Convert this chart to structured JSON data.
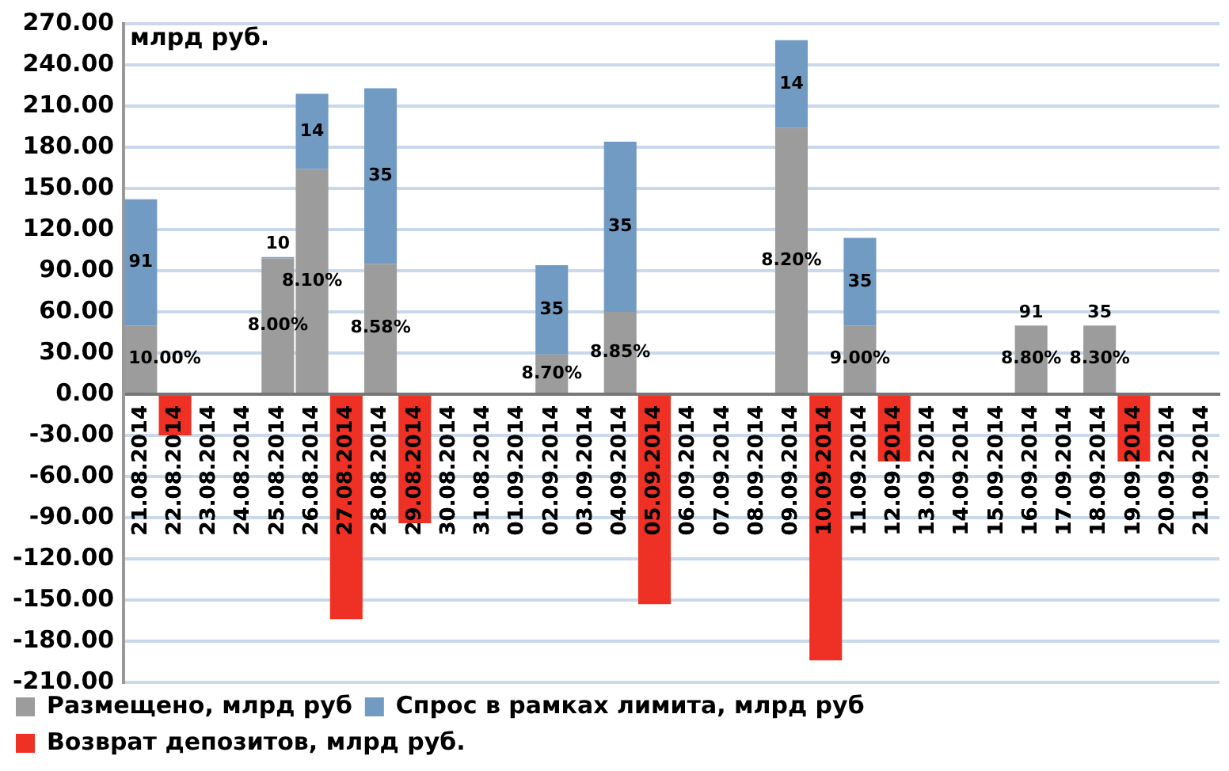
{
  "chart_data": {
    "type": "bar",
    "stacked": true,
    "ylabel": "млрд руб.",
    "categories": [
      "21.08.2014",
      "22.08.2014",
      "23.08.2014",
      "24.08.2014",
      "25.08.2014",
      "26.08.2014",
      "27.08.2014",
      "28.08.2014",
      "29.08.2014",
      "30.08.2014",
      "31.08.2014",
      "01.09.2014",
      "02.09.2014",
      "03.09.2014",
      "04.09.2014",
      "05.09.2014",
      "06.09.2014",
      "07.09.2014",
      "08.09.2014",
      "09.09.2014",
      "10.09.2014",
      "11.09.2014",
      "12.09.2014",
      "13.09.2014",
      "14.09.2014",
      "15.09.2014",
      "16.09.2014",
      "17.09.2014",
      "18.09.2014",
      "19.09.2014",
      "20.09.2014",
      "21.09.2014"
    ],
    "series": [
      {
        "name": "Размещено, млрд руб",
        "color": "#9c9c9c",
        "values": [
          50,
          null,
          null,
          null,
          99,
          164,
          null,
          95,
          null,
          null,
          null,
          null,
          29,
          null,
          60,
          null,
          null,
          null,
          null,
          194,
          null,
          50,
          null,
          null,
          null,
          null,
          50,
          null,
          50,
          null,
          null,
          null
        ]
      },
      {
        "name": "Спрос в рамках лимита, млрд руб",
        "color": "#729bc3",
        "values": [
          92,
          null,
          null,
          null,
          1,
          55,
          null,
          128,
          null,
          null,
          null,
          null,
          65,
          null,
          124,
          null,
          null,
          null,
          null,
          64,
          null,
          64,
          null,
          null,
          null,
          null,
          0,
          null,
          0,
          null,
          null,
          null
        ]
      },
      {
        "name": "Возврат депозитов, млрд руб.",
        "color": "#ee3124",
        "values": [
          null,
          -30,
          null,
          null,
          null,
          null,
          -164,
          null,
          -94,
          null,
          null,
          null,
          null,
          null,
          null,
          -153,
          null,
          null,
          null,
          null,
          -194,
          null,
          -49,
          null,
          null,
          null,
          null,
          null,
          null,
          -49,
          null,
          null
        ]
      }
    ],
    "ylim": [
      -210,
      270
    ],
    "yticks": [
      {
        "value": -210,
        "label": "-210.00"
      },
      {
        "value": -180,
        "label": "-180.00"
      },
      {
        "value": -150,
        "label": "-150.00"
      },
      {
        "value": -120,
        "label": "-120.00"
      },
      {
        "value": -90,
        "label": "-90.00"
      },
      {
        "value": -60,
        "label": "-60.00"
      },
      {
        "value": -30,
        "label": "-30.00"
      },
      {
        "value": 0,
        "label": "0.00"
      },
      {
        "value": 30,
        "label": "30.00"
      },
      {
        "value": 60,
        "label": "60.00"
      },
      {
        "value": 90,
        "label": "90.00"
      },
      {
        "value": 120,
        "label": "120.00"
      },
      {
        "value": 150,
        "label": "150.00"
      },
      {
        "value": 180,
        "label": "180.00"
      },
      {
        "value": 210,
        "label": "210.00"
      },
      {
        "value": 240,
        "label": "240.00"
      },
      {
        "value": 270,
        "label": "270.00"
      }
    ],
    "annotations": [
      "10.00%",
      "91",
      "8.00%",
      "10",
      "8.10%",
      "14",
      "8.58%",
      "35",
      "8.70%",
      "35",
      "8.85%",
      "35",
      "8.20%",
      "14",
      "9.00%",
      "35",
      "8.80%",
      "91",
      "8.30%",
      "35"
    ],
    "grid": "y",
    "legend": "bottom"
  }
}
